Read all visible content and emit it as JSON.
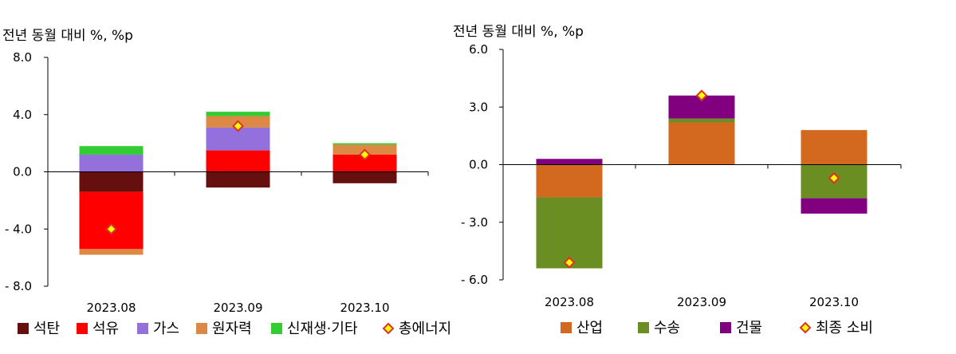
{
  "chart_data": [
    {
      "type": "bar",
      "stacked": true,
      "unit_label": "전년 동월 대비 %, %p",
      "categories": [
        "2023.08",
        "2023.09",
        "2023.10"
      ],
      "ylim": [
        -8,
        8
      ],
      "yticks": [
        8,
        4,
        0,
        -4,
        -8
      ],
      "ytick_labels": [
        "8.0",
        "4.0",
        "0.0",
        "- 4.0",
        "- 8.0"
      ],
      "legend_position": "bottom",
      "series": [
        {
          "name": "석탄",
          "color": "#660f0f",
          "values": [
            -1.4,
            -1.1,
            -0.8
          ]
        },
        {
          "name": "석유",
          "color": "#ff0000",
          "values": [
            -4.0,
            1.5,
            1.2
          ]
        },
        {
          "name": "가스",
          "color": "#9370db",
          "values": [
            1.2,
            1.6,
            0.0
          ]
        },
        {
          "name": "원자력",
          "color": "#dd8844",
          "values": [
            -0.4,
            0.8,
            0.7
          ]
        },
        {
          "name": "신재생·기타",
          "color": "#33cc33",
          "values": [
            0.6,
            0.3,
            0.1
          ]
        }
      ],
      "total": {
        "name": "총에너지",
        "marker_fill": "#ffff00",
        "marker_stroke": "#e03020",
        "values": [
          -4.0,
          3.2,
          1.2
        ]
      }
    },
    {
      "type": "bar",
      "stacked": true,
      "unit_label": "전년 동월 대비 %, %p",
      "categories": [
        "2023.08",
        "2023.09",
        "2023.10"
      ],
      "ylim": [
        -6,
        6
      ],
      "yticks": [
        6,
        3,
        0,
        -3,
        -6
      ],
      "ytick_labels": [
        "6.0",
        "3.0",
        "0.0",
        "- 3.0",
        "- 6.0"
      ],
      "legend_position": "bottom",
      "series": [
        {
          "name": "산업",
          "color": "#d2691e",
          "values": [
            -1.7,
            2.2,
            1.8
          ]
        },
        {
          "name": "수송",
          "color": "#6b8e23",
          "values": [
            -3.7,
            0.2,
            -1.75
          ]
        },
        {
          "name": "건물",
          "color": "#800080",
          "values": [
            0.3,
            1.2,
            -0.8
          ]
        }
      ],
      "total": {
        "name": "최종 소비",
        "marker_fill": "#ffff00",
        "marker_stroke": "#e03020",
        "values": [
          -5.1,
          3.6,
          -0.7
        ]
      }
    }
  ]
}
